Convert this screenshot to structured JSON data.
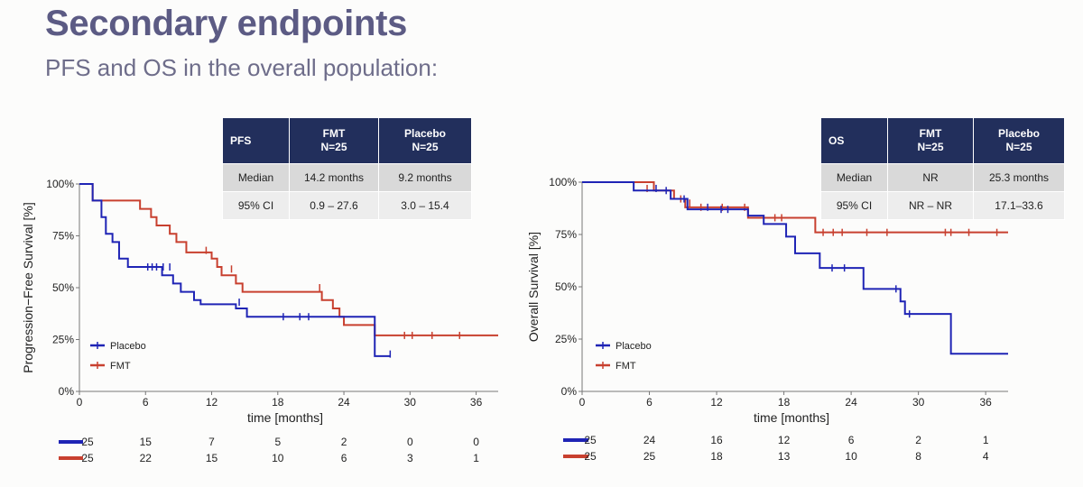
{
  "header": {
    "title": "Secondary endpoints",
    "subtitle": "PFS and OS in the overall population:"
  },
  "colors": {
    "placebo": "#1f24b5",
    "fmt": "#c8402f",
    "table_header": "#222f5c"
  },
  "tables": [
    {
      "headers": [
        "PFS",
        "FMT\nN=25",
        "Placebo\nN=25"
      ],
      "rows": [
        [
          "Median",
          "14.2 months",
          "9.2 months"
        ],
        [
          "95% CI",
          "0.9 – 27.6",
          "3.0 – 15.4"
        ]
      ]
    },
    {
      "headers": [
        "OS",
        "FMT\nN=25",
        "Placebo\nN=25"
      ],
      "rows": [
        [
          "Median",
          "NR",
          "25.3 months"
        ],
        [
          "95% CI",
          "NR – NR",
          "17.1–33.6"
        ]
      ]
    }
  ],
  "chart_data": [
    {
      "type": "line",
      "subtype": "kaplan-meier",
      "title": "PFS",
      "xlabel": "time [months]",
      "ylabel": "Progression−Free Survival [%]",
      "xlim": [
        0,
        38
      ],
      "ylim": [
        0,
        100
      ],
      "xticks": [
        0,
        6,
        12,
        18,
        24,
        30,
        36
      ],
      "yticks": [
        0,
        25,
        50,
        75,
        100
      ],
      "ytick_labels": [
        "0%",
        "25%",
        "50%",
        "75%",
        "100%"
      ],
      "legend": [
        "Placebo",
        "FMT"
      ],
      "series": [
        {
          "name": "Placebo",
          "steps": [
            [
              0,
              100
            ],
            [
              1.2,
              92
            ],
            [
              2,
              84
            ],
            [
              2.4,
              76
            ],
            [
              3,
              72
            ],
            [
              3.6,
              64
            ],
            [
              4.4,
              60
            ],
            [
              7.5,
              56
            ],
            [
              8.5,
              52
            ],
            [
              9.2,
              48
            ],
            [
              10.4,
              44
            ],
            [
              11,
              42
            ],
            [
              14.2,
              40
            ],
            [
              15.2,
              36
            ],
            [
              26.8,
              17
            ],
            [
              28.2,
              17
            ]
          ],
          "censors": [
            [
              6.2,
              60
            ],
            [
              6.6,
              60
            ],
            [
              7.0,
              60
            ],
            [
              7.6,
              60
            ],
            [
              8.2,
              60
            ],
            [
              14.5,
              43
            ],
            [
              18.5,
              36
            ],
            [
              20.0,
              36
            ],
            [
              20.8,
              36
            ],
            [
              28.2,
              18
            ]
          ],
          "at_risk": [
            25,
            15,
            7,
            5,
            2,
            0,
            0
          ]
        },
        {
          "name": "FMT",
          "steps": [
            [
              0,
              100
            ],
            [
              1.2,
              92
            ],
            [
              5.5,
              88
            ],
            [
              6.5,
              84
            ],
            [
              7,
              80
            ],
            [
              8.2,
              76
            ],
            [
              8.8,
              72
            ],
            [
              9.7,
              67
            ],
            [
              12,
              64
            ],
            [
              12.5,
              60
            ],
            [
              12.9,
              56
            ],
            [
              14.2,
              52
            ],
            [
              14.8,
              48
            ],
            [
              22,
              44
            ],
            [
              23,
              40
            ],
            [
              23.6,
              36
            ],
            [
              24,
              32
            ],
            [
              26.8,
              27
            ],
            [
              38,
              27
            ]
          ],
          "censors": [
            [
              11.5,
              68
            ],
            [
              13.8,
              59
            ],
            [
              21.8,
              50
            ],
            [
              29.5,
              27
            ],
            [
              30.2,
              27
            ],
            [
              32,
              27
            ],
            [
              34.5,
              27
            ]
          ],
          "at_risk": [
            25,
            22,
            15,
            10,
            6,
            3,
            1
          ]
        }
      ]
    },
    {
      "type": "line",
      "subtype": "kaplan-meier",
      "title": "OS",
      "xlabel": "time [months]",
      "ylabel": "Overall Survival [%]",
      "xlim": [
        0,
        38
      ],
      "ylim": [
        0,
        100
      ],
      "xticks": [
        0,
        6,
        12,
        18,
        24,
        30,
        36
      ],
      "yticks": [
        0,
        25,
        50,
        75,
        100
      ],
      "ytick_labels": [
        "0%",
        "25%",
        "50%",
        "75%",
        "100%"
      ],
      "legend": [
        "Placebo",
        "FMT"
      ],
      "series": [
        {
          "name": "Placebo",
          "steps": [
            [
              0,
              100
            ],
            [
              4.6,
              96
            ],
            [
              7.9,
              92
            ],
            [
              9.4,
              87
            ],
            [
              14.8,
              84
            ],
            [
              16.2,
              80
            ],
            [
              18.2,
              74
            ],
            [
              19,
              66
            ],
            [
              21.2,
              59
            ],
            [
              25.1,
              49
            ],
            [
              28.4,
              43
            ],
            [
              28.8,
              37
            ],
            [
              32.9,
              18
            ],
            [
              38,
              18
            ]
          ],
          "censors": [
            [
              6.6,
              97
            ],
            [
              7.5,
              96
            ],
            [
              9.1,
              92
            ],
            [
              11.2,
              88
            ],
            [
              12.4,
              87
            ],
            [
              13,
              87
            ],
            [
              22.3,
              59
            ],
            [
              23.4,
              59
            ],
            [
              28,
              49
            ],
            [
              29.2,
              37
            ]
          ],
          "at_risk": [
            25,
            24,
            16,
            12,
            6,
            2,
            1
          ]
        },
        {
          "name": "FMT",
          "steps": [
            [
              0,
              100
            ],
            [
              6.4,
              96
            ],
            [
              8.2,
              92
            ],
            [
              9.2,
              88
            ],
            [
              14.8,
              83
            ],
            [
              20.8,
              76
            ],
            [
              38,
              76
            ]
          ],
          "censors": [
            [
              5.8,
              97
            ],
            [
              8.8,
              92
            ],
            [
              9.6,
              90
            ],
            [
              10.6,
              88
            ],
            [
              12.5,
              88
            ],
            [
              14.5,
              88
            ],
            [
              17.2,
              83
            ],
            [
              17.8,
              83
            ],
            [
              21.5,
              76
            ],
            [
              22.4,
              76
            ],
            [
              23.2,
              76
            ],
            [
              25.4,
              76
            ],
            [
              27.2,
              76
            ],
            [
              32.4,
              76
            ],
            [
              32.9,
              76
            ],
            [
              34.5,
              76
            ],
            [
              37,
              76
            ]
          ],
          "at_risk": [
            25,
            25,
            18,
            13,
            10,
            8,
            4
          ]
        }
      ]
    }
  ]
}
